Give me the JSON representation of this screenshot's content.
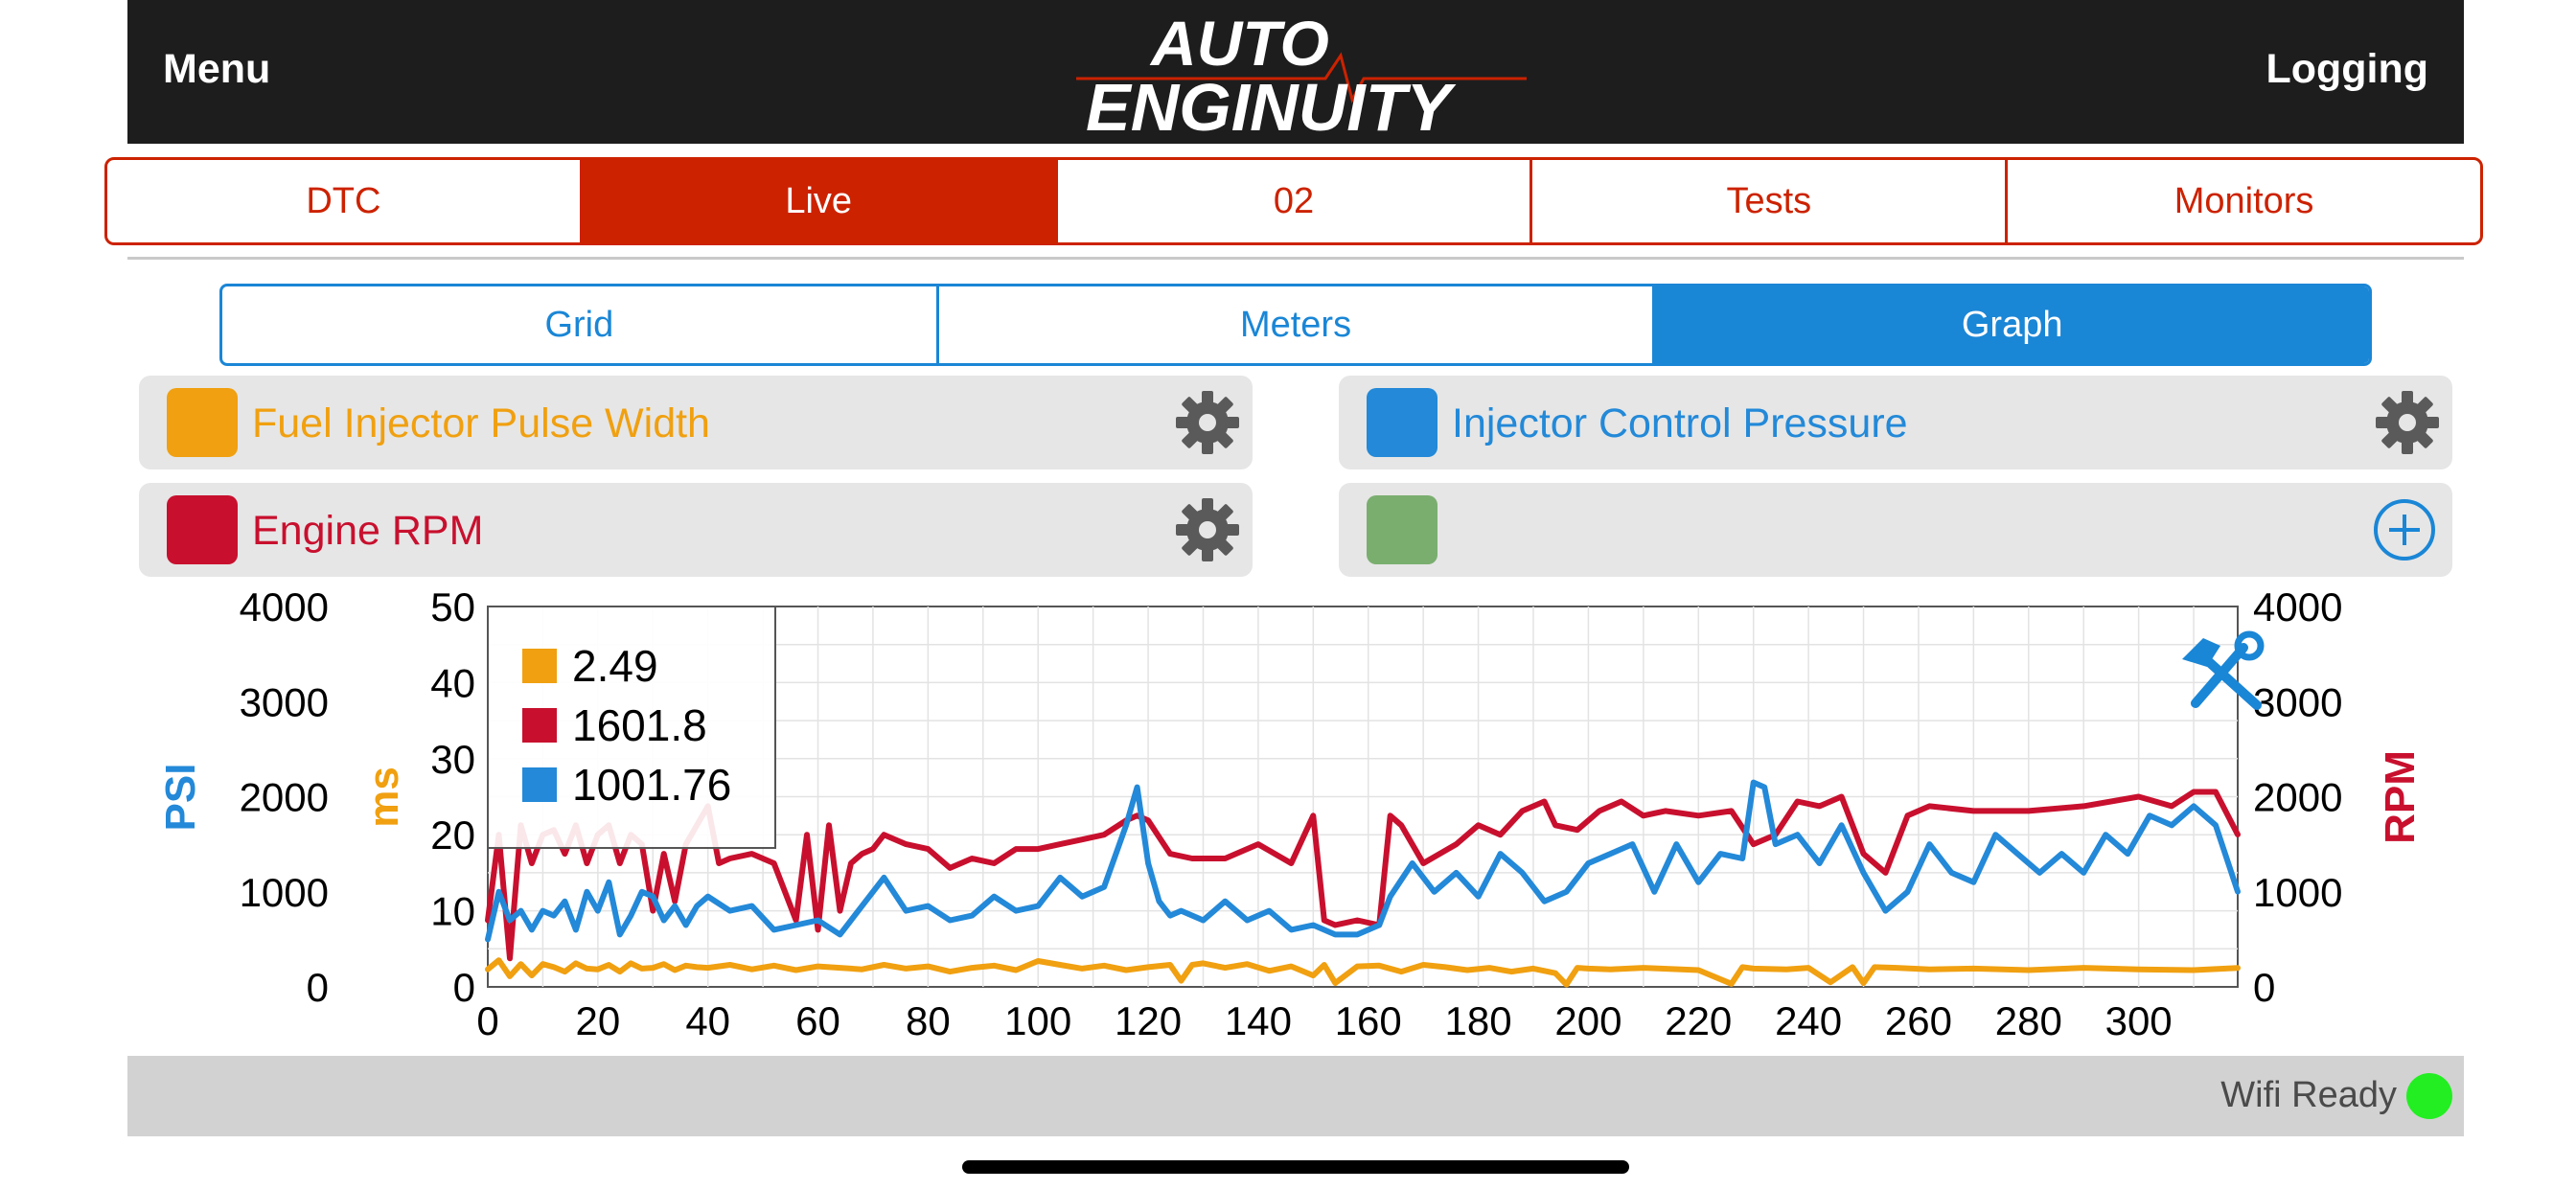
{
  "header": {
    "menu_label": "Menu",
    "logging_label": "Logging",
    "logo_line1": "AUTO",
    "logo_line2": "ENGINUITY"
  },
  "tabs": [
    {
      "label": "DTC",
      "active": false
    },
    {
      "label": "Live",
      "active": true
    },
    {
      "label": "02",
      "active": false
    },
    {
      "label": "Tests",
      "active": false
    },
    {
      "label": "Monitors",
      "active": false
    }
  ],
  "subtabs": [
    {
      "label": "Grid",
      "active": false
    },
    {
      "label": "Meters",
      "active": false
    },
    {
      "label": "Graph",
      "active": true
    }
  ],
  "channels": [
    {
      "label": "Fuel Injector Pulse Width",
      "color": "#f0a010",
      "action_icon": "gear-icon"
    },
    {
      "label": "Injector Control Pressure",
      "color": "#2389d8",
      "action_icon": "gear-icon"
    },
    {
      "label": "Engine RPM",
      "color": "#c8102e",
      "action_icon": "gear-icon"
    },
    {
      "label": "",
      "color": "#7aae6f",
      "action_icon": "add-circle-icon"
    }
  ],
  "chart_data": {
    "type": "line",
    "x_ticks": [
      "0",
      "20",
      "40",
      "60",
      "80",
      "100",
      "120",
      "140",
      "160",
      "180",
      "200",
      "220",
      "240",
      "260",
      "280",
      "300"
    ],
    "xlim": [
      0,
      318
    ],
    "axes": {
      "psi": {
        "label": "PSI",
        "color": "#2389d8",
        "ticks": [
          "4000",
          "3000",
          "2000",
          "1000",
          "0"
        ],
        "ylim": [
          0,
          4000
        ]
      },
      "ms": {
        "label": "ms",
        "color": "#f0a010",
        "ticks": [
          "50",
          "40",
          "30",
          "20",
          "10",
          "0"
        ],
        "ylim": [
          0,
          50
        ]
      },
      "rpm": {
        "label": "RPM",
        "color": "#c8102e",
        "ticks": [
          "4000",
          "3000",
          "2000",
          "1000",
          "0"
        ],
        "ylim": [
          0,
          4000
        ]
      }
    },
    "grid": true,
    "legend": {
      "placement": "top-left",
      "entries": [
        {
          "value": "2.49",
          "color": "#f0a010"
        },
        {
          "value": "1601.8",
          "color": "#c8102e"
        },
        {
          "value": "1001.76",
          "color": "#2389d8"
        }
      ]
    },
    "series": [
      {
        "name": "Fuel Injector Pulse Width",
        "axis": "ms",
        "color": "#f0a010",
        "x": [
          0,
          2,
          4,
          6,
          8,
          10,
          12,
          14,
          16,
          18,
          20,
          22,
          24,
          26,
          28,
          30,
          32,
          34,
          36,
          38,
          40,
          44,
          48,
          52,
          56,
          60,
          64,
          68,
          72,
          76,
          80,
          84,
          88,
          92,
          96,
          100,
          104,
          108,
          112,
          116,
          120,
          124,
          126,
          128,
          130,
          134,
          138,
          142,
          146,
          150,
          152,
          154,
          158,
          162,
          166,
          170,
          174,
          178,
          182,
          186,
          190,
          194,
          196,
          198,
          200,
          204,
          210,
          220,
          226,
          228,
          230,
          236,
          240,
          244,
          248,
          250,
          252,
          256,
          262,
          270,
          280,
          290,
          300,
          310,
          318
        ],
        "y": [
          2.3,
          3.5,
          1.4,
          3.0,
          1.5,
          3.0,
          2.6,
          2.0,
          3.1,
          2.4,
          2.3,
          2.9,
          2.0,
          3.1,
          2.4,
          2.5,
          3.0,
          2.2,
          2.8,
          2.6,
          2.5,
          2.9,
          2.3,
          2.8,
          2.2,
          2.7,
          2.5,
          2.3,
          2.9,
          2.4,
          2.7,
          2.0,
          2.5,
          2.8,
          2.2,
          3.4,
          2.9,
          2.4,
          2.8,
          2.2,
          2.6,
          2.9,
          0.8,
          2.9,
          3.1,
          2.5,
          3.0,
          2.1,
          2.7,
          1.5,
          2.9,
          0.5,
          2.7,
          2.8,
          2.0,
          2.9,
          2.6,
          2.2,
          2.5,
          2.0,
          2.4,
          1.8,
          0.3,
          2.5,
          2.4,
          2.3,
          2.5,
          2.2,
          0.4,
          2.6,
          2.4,
          2.3,
          2.5,
          0.6,
          2.6,
          0.5,
          2.6,
          2.5,
          2.3,
          2.4,
          2.2,
          2.5,
          2.3,
          2.2,
          2.49
        ]
      },
      {
        "name": "Engine RPM",
        "axis": "rpm",
        "color": "#c8102e",
        "x": [
          0,
          2,
          4,
          6,
          8,
          10,
          12,
          14,
          16,
          18,
          20,
          22,
          24,
          26,
          28,
          30,
          32,
          34,
          36,
          38,
          40,
          42,
          44,
          48,
          52,
          56,
          58,
          60,
          62,
          64,
          66,
          68,
          70,
          72,
          76,
          80,
          84,
          88,
          92,
          96,
          100,
          104,
          108,
          112,
          116,
          118,
          120,
          124,
          128,
          134,
          140,
          146,
          150,
          152,
          154,
          158,
          162,
          164,
          166,
          170,
          176,
          180,
          184,
          188,
          192,
          194,
          198,
          202,
          206,
          210,
          214,
          220,
          226,
          230,
          234,
          238,
          242,
          246,
          250,
          254,
          258,
          262,
          270,
          280,
          290,
          300,
          306,
          310,
          314,
          318
        ],
        "y": [
          700,
          1600,
          300,
          1700,
          1300,
          1600,
          1650,
          1400,
          1700,
          1300,
          1600,
          1700,
          1300,
          1600,
          1500,
          800,
          1400,
          900,
          1500,
          1700,
          1900,
          1300,
          1350,
          1400,
          1300,
          700,
          1600,
          600,
          1700,
          800,
          1300,
          1400,
          1450,
          1600,
          1500,
          1450,
          1250,
          1350,
          1300,
          1450,
          1450,
          1500,
          1550,
          1600,
          1750,
          1800,
          1750,
          1400,
          1350,
          1350,
          1500,
          1300,
          1800,
          700,
          650,
          700,
          650,
          1800,
          1700,
          1300,
          1500,
          1700,
          1600,
          1850,
          1950,
          1700,
          1650,
          1850,
          1950,
          1800,
          1850,
          1800,
          1850,
          1500,
          1600,
          1950,
          1900,
          2000,
          1400,
          1200,
          1800,
          1900,
          1850,
          1850,
          1900,
          2000,
          1900,
          2050,
          2050,
          1601.8
        ]
      },
      {
        "name": "Injector Control Pressure",
        "axis": "psi",
        "color": "#2389d8",
        "x": [
          0,
          2,
          4,
          6,
          8,
          10,
          12,
          14,
          16,
          18,
          20,
          22,
          24,
          26,
          28,
          30,
          32,
          34,
          36,
          38,
          40,
          44,
          48,
          52,
          56,
          60,
          64,
          68,
          72,
          76,
          80,
          84,
          88,
          92,
          96,
          100,
          104,
          108,
          112,
          116,
          118,
          120,
          122,
          124,
          126,
          130,
          134,
          138,
          142,
          146,
          150,
          154,
          158,
          162,
          164,
          168,
          172,
          176,
          180,
          184,
          188,
          192,
          196,
          200,
          204,
          208,
          212,
          216,
          220,
          224,
          228,
          230,
          232,
          234,
          238,
          242,
          246,
          250,
          254,
          258,
          262,
          266,
          270,
          274,
          278,
          282,
          286,
          290,
          294,
          298,
          302,
          306,
          310,
          314,
          318
        ],
        "y": [
          500,
          1000,
          700,
          800,
          600,
          800,
          750,
          900,
          600,
          1000,
          800,
          1100,
          550,
          750,
          1000,
          950,
          700,
          850,
          650,
          850,
          950,
          800,
          850,
          600,
          650,
          700,
          550,
          850,
          1150,
          800,
          850,
          700,
          750,
          950,
          800,
          850,
          1150,
          950,
          1050,
          1700,
          2100,
          1300,
          900,
          750,
          800,
          700,
          900,
          700,
          800,
          600,
          650,
          550,
          550,
          650,
          950,
          1300,
          1000,
          1200,
          950,
          1400,
          1200,
          900,
          1000,
          1300,
          1400,
          1500,
          1000,
          1500,
          1100,
          1400,
          1350,
          2150,
          2100,
          1500,
          1600,
          1300,
          1700,
          1200,
          800,
          1000,
          1500,
          1200,
          1100,
          1600,
          1400,
          1200,
          1400,
          1200,
          1600,
          1400,
          1800,
          1700,
          1900,
          1700,
          1001.76
        ]
      }
    ]
  }
}
